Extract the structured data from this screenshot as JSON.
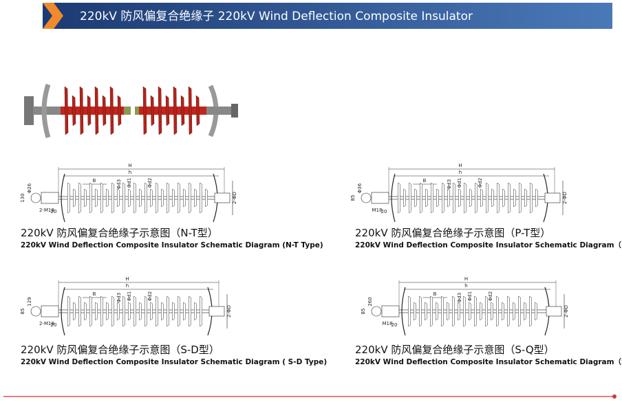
{
  "header": {
    "title": "220kV 防风偏复合绝缘子  220kV Wind Deflection Composite Insulator"
  },
  "diagrams": [
    {
      "caption_cn": "220kV 防风偏复合绝缘子示意图（N-T型）",
      "caption_en": "220kV Wind Deflection Composite Insulator Schematic Diagram  (N-T Type)",
      "labels": [
        "H",
        "h",
        "B",
        "Φd3",
        "Φd1",
        "Φd2",
        "2-ΦD",
        "2-M18",
        "Φ26",
        "130",
        "20"
      ]
    },
    {
      "caption_cn": "220kV 防风偏复合绝缘子示意图（P-T型）",
      "caption_en": "220kV Wind Deflection Composite Insulator Schematic Diagram（P-T Type)",
      "labels": [
        "H",
        "h",
        "B",
        "Φd3",
        "Φd1",
        "Φd2",
        "2-ΦD",
        "M18",
        "Φ36",
        "85",
        "20"
      ]
    },
    {
      "caption_cn": "220kV 防风偏复合绝缘子示意图（S-D型）",
      "caption_en": "220kV Wind Deflection  Composite Insulator Schematic Diagram ( S-D Type)",
      "labels": [
        "H",
        "h",
        "B",
        "Φd3",
        "Φd1",
        "Φd2",
        "2-ΦD",
        "2-M18",
        "129",
        "85",
        "20"
      ]
    },
    {
      "caption_cn": "220kV 防风偏复合绝缘子示意图（S-Q型）",
      "caption_en": "220kV Wind Deflection Composite Insulator Schematic Diagram（S-Q Type)",
      "labels": [
        "H",
        "h",
        "B",
        "Φd3",
        "Φd1",
        "Φd2",
        "2-ΦD",
        "M18",
        "260",
        "85",
        "20"
      ]
    }
  ]
}
